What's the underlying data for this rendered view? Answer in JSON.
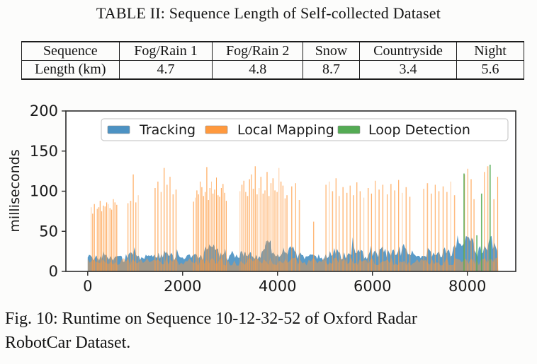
{
  "table_section": {
    "title": "TABLE II: Sequence Length of Self-collected Dataset",
    "columns": [
      "Sequence",
      "Fog/Rain 1",
      "Fog/Rain 2",
      "Snow",
      "Countryside",
      "Night"
    ],
    "col_widths_pct": [
      19.4,
      18.6,
      18.0,
      11.3,
      19.3,
      13.4
    ],
    "rows": [
      [
        "Length (km)",
        "4.7",
        "4.8",
        "8.7",
        "3.4",
        "5.6"
      ]
    ]
  },
  "figure": {
    "caption_lines": [
      "Fig. 10: Runtime on Sequence 10-12-32-52 of Oxford Radar",
      "RobotCar Dataset."
    ]
  },
  "chart_data": {
    "type": "bar",
    "title": "",
    "xlabel": "",
    "ylabel": "milliseconds",
    "xlim": [
      -460,
      9020
    ],
    "ylim": [
      0,
      200
    ],
    "xticks": [
      0,
      2000,
      4000,
      6000,
      8000
    ],
    "yticks": [
      0,
      50,
      100,
      150,
      200
    ],
    "grid": false,
    "axis_color": "#2a2a2a",
    "plot_bg": "#ffffff",
    "legend": {
      "position": "upper center inside",
      "entries": [
        {
          "label": "Tracking",
          "color": "#4c92c3"
        },
        {
          "label": "Local Mapping",
          "color": "#ff993e"
        },
        {
          "label": "Loop Detection",
          "color": "#54ab54"
        }
      ]
    },
    "series": [
      {
        "name": "Tracking",
        "color": "#4c92c3",
        "style": "dense-band",
        "unit": "ms",
        "envelope": [
          [
            0,
            17
          ],
          [
            150,
            19
          ],
          [
            300,
            16
          ],
          [
            450,
            20
          ],
          [
            600,
            17
          ],
          [
            750,
            16
          ],
          [
            900,
            21
          ],
          [
            1000,
            26
          ],
          [
            1100,
            18
          ],
          [
            1250,
            17
          ],
          [
            1400,
            19
          ],
          [
            1550,
            21
          ],
          [
            1650,
            24
          ],
          [
            1800,
            18
          ],
          [
            1950,
            17
          ],
          [
            2100,
            19
          ],
          [
            2250,
            20
          ],
          [
            2400,
            18
          ],
          [
            2500,
            22
          ],
          [
            2600,
            34
          ],
          [
            2700,
            28
          ],
          [
            2800,
            20
          ],
          [
            2950,
            18
          ],
          [
            3100,
            19
          ],
          [
            3250,
            24
          ],
          [
            3400,
            20
          ],
          [
            3550,
            19
          ],
          [
            3700,
            22
          ],
          [
            3800,
            36
          ],
          [
            3900,
            28
          ],
          [
            4000,
            21
          ],
          [
            4150,
            20
          ],
          [
            4300,
            27
          ],
          [
            4450,
            20
          ],
          [
            4600,
            18
          ],
          [
            4750,
            17
          ],
          [
            4900,
            18
          ],
          [
            5050,
            20
          ],
          [
            5200,
            25
          ],
          [
            5350,
            20
          ],
          [
            5500,
            22
          ],
          [
            5600,
            30
          ],
          [
            5750,
            22
          ],
          [
            5900,
            20
          ],
          [
            6050,
            22
          ],
          [
            6200,
            27
          ],
          [
            6350,
            21
          ],
          [
            6500,
            23
          ],
          [
            6700,
            29
          ],
          [
            6850,
            21
          ],
          [
            7000,
            20
          ],
          [
            7150,
            25
          ],
          [
            7300,
            20
          ],
          [
            7450,
            22
          ],
          [
            7600,
            24
          ],
          [
            7750,
            28
          ],
          [
            7900,
            32
          ],
          [
            8000,
            38
          ],
          [
            8100,
            34
          ],
          [
            8200,
            24
          ],
          [
            8350,
            28
          ],
          [
            8500,
            38
          ],
          [
            8600,
            30
          ],
          [
            8650,
            22
          ]
        ]
      },
      {
        "name": "Local Mapping",
        "color": "#ff993e",
        "style": "spikes",
        "unit": "ms",
        "base_band_ms": 13,
        "spikes": [
          [
            75,
            80
          ],
          [
            105,
            72
          ],
          [
            140,
            84
          ],
          [
            200,
            78
          ],
          [
            232,
            80
          ],
          [
            262,
            88
          ],
          [
            295,
            75
          ],
          [
            330,
            82
          ],
          [
            365,
            81
          ],
          [
            400,
            86
          ],
          [
            435,
            84
          ],
          [
            470,
            79
          ],
          [
            505,
            77
          ],
          [
            540,
            90
          ],
          [
            575,
            86
          ],
          [
            612,
            83
          ],
          [
            850,
            85
          ],
          [
            905,
            88
          ],
          [
            960,
            121
          ],
          [
            1015,
            86
          ],
          [
            1065,
            95
          ],
          [
            1420,
            104
          ],
          [
            1480,
            112
          ],
          [
            1545,
            99
          ],
          [
            1610,
            129
          ],
          [
            1672,
            108
          ],
          [
            1735,
            118
          ],
          [
            1800,
            96
          ],
          [
            1862,
            102
          ],
          [
            2230,
            87
          ],
          [
            2265,
            92
          ],
          [
            2300,
            101
          ],
          [
            2335,
            96
          ],
          [
            2370,
            112
          ],
          [
            2405,
            105
          ],
          [
            2440,
            94
          ],
          [
            2475,
            99
          ],
          [
            2510,
            130
          ],
          [
            2545,
            89
          ],
          [
            2575,
            104
          ],
          [
            2608,
            112
          ],
          [
            2640,
            97
          ],
          [
            2675,
            102
          ],
          [
            2712,
            117
          ],
          [
            2745,
            95
          ],
          [
            2780,
            93
          ],
          [
            2815,
            104
          ],
          [
            2850,
            109
          ],
          [
            2885,
            98
          ],
          [
            2920,
            88
          ],
          [
            3210,
            100
          ],
          [
            3250,
            108
          ],
          [
            3290,
            113
          ],
          [
            3330,
            99
          ],
          [
            3370,
            94
          ],
          [
            3410,
            115
          ],
          [
            3450,
            121
          ],
          [
            3490,
            103
          ],
          [
            3530,
            131
          ],
          [
            3570,
            96
          ],
          [
            3612,
            104
          ],
          [
            3650,
            118
          ],
          [
            3695,
            97
          ],
          [
            3735,
            101
          ],
          [
            3780,
            124
          ],
          [
            3820,
            94
          ],
          [
            3862,
            110
          ],
          [
            3905,
            116
          ],
          [
            3945,
            101
          ],
          [
            3990,
            99
          ],
          [
            4030,
            129
          ],
          [
            4072,
            112
          ],
          [
            4115,
            107
          ],
          [
            4158,
            91
          ],
          [
            4200,
            95
          ],
          [
            4300,
            106
          ],
          [
            4382,
            110
          ],
          [
            4460,
            89
          ],
          [
            4760,
            62
          ],
          [
            5020,
            108
          ],
          [
            5092,
            112
          ],
          [
            5160,
            100
          ],
          [
            5232,
            116
          ],
          [
            5300,
            94
          ],
          [
            5380,
            105
          ],
          [
            5462,
            98
          ],
          [
            5530,
            107
          ],
          [
            5600,
            95
          ],
          [
            5672,
            111
          ],
          [
            5740,
            100
          ],
          [
            5820,
            92
          ],
          [
            5910,
            104
          ],
          [
            5980,
            97
          ],
          [
            6060,
            113
          ],
          [
            6140,
            102
          ],
          [
            6220,
            108
          ],
          [
            6310,
            96
          ],
          [
            6390,
            109
          ],
          [
            6470,
            101
          ],
          [
            6552,
            114
          ],
          [
            6630,
            98
          ],
          [
            6710,
            105
          ],
          [
            6790,
            93
          ],
          [
            7080,
            103
          ],
          [
            7160,
            110
          ],
          [
            7240,
            97
          ],
          [
            7322,
            108
          ],
          [
            7400,
            100
          ],
          [
            7490,
            106
          ],
          [
            7570,
            99
          ],
          [
            7650,
            112
          ],
          [
            7730,
            95
          ],
          [
            7940,
            121
          ],
          [
            8010,
            128
          ],
          [
            8080,
            115
          ],
          [
            8140,
            90
          ],
          [
            8360,
            124
          ],
          [
            8430,
            131
          ],
          [
            8560,
            90
          ],
          [
            8640,
            118
          ]
        ]
      },
      {
        "name": "Loop Detection",
        "color": "#54ab54",
        "style": "spikes",
        "unit": "ms",
        "spikes": [
          [
            7930,
            122
          ],
          [
            8200,
            45
          ],
          [
            8300,
            97
          ],
          [
            8480,
            133
          ]
        ]
      }
    ]
  }
}
